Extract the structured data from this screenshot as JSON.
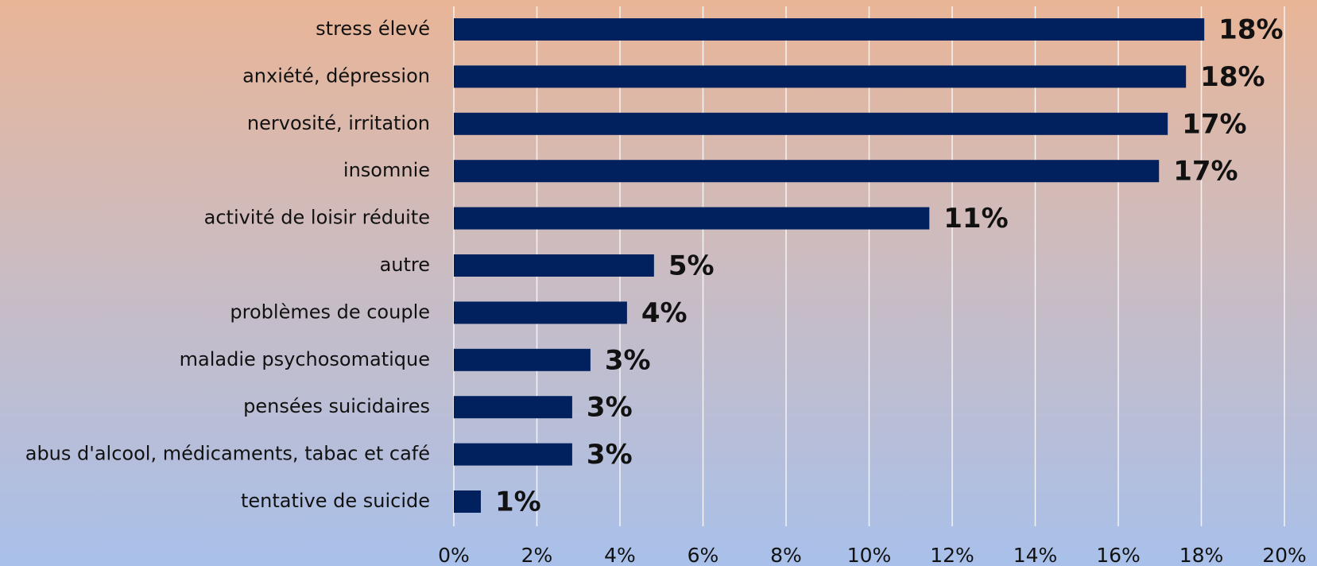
{
  "chart_data": {
    "type": "bar",
    "orientation": "horizontal",
    "categories": [
      "stress élevé",
      "anxiété, dépression",
      "nervosité, irritation",
      "insomnie",
      "activité de loisir réduite",
      "autre",
      "problèmes de couple",
      "maladie psychosomatique",
      "pensées suicidaires",
      "abus d'alcool, médicaments, tabac et café",
      "tentative de suicide"
    ],
    "values": [
      18.07,
      17.63,
      17.19,
      16.98,
      11.45,
      4.82,
      4.17,
      3.29,
      2.85,
      2.85,
      0.65
    ],
    "value_labels": [
      "18%",
      "18%",
      "17%",
      "17%",
      "11%",
      "5%",
      "4%",
      "3%",
      "3%",
      "3%",
      "1%"
    ],
    "color": "#00215e",
    "xlim": [
      0,
      20
    ],
    "xticks": [
      {
        "value": 0,
        "label": "0%"
      },
      {
        "value": 2,
        "label": "2%"
      },
      {
        "value": 4,
        "label": "4%"
      },
      {
        "value": 6,
        "label": "6%"
      },
      {
        "value": 8,
        "label": "8%"
      },
      {
        "value": 10,
        "label": "10%"
      },
      {
        "value": 12,
        "label": "12%"
      },
      {
        "value": 14,
        "label": "14%"
      },
      {
        "value": 16,
        "label": "16%"
      },
      {
        "value": 18,
        "label": "18%"
      },
      {
        "value": 20,
        "label": "20%"
      }
    ],
    "grid": true
  }
}
